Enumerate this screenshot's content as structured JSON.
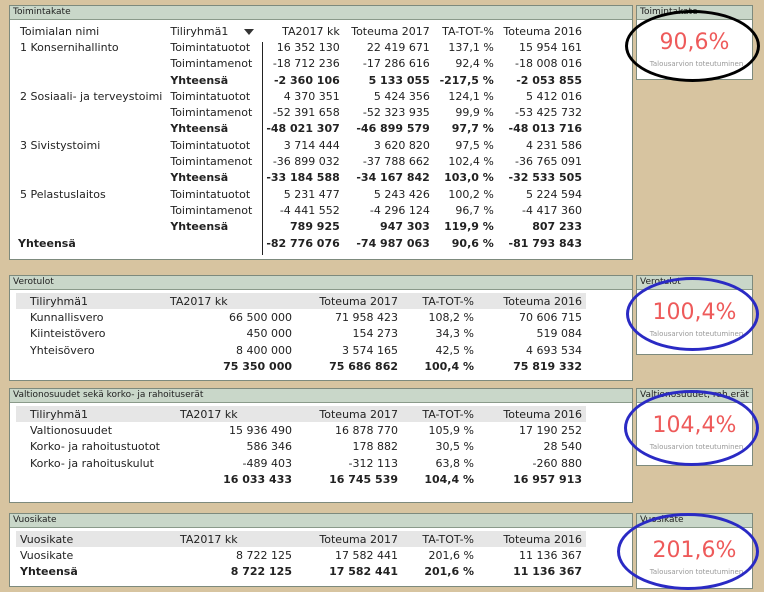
{
  "toimintakate": {
    "title": "Toimintakate",
    "headers": [
      "Toimialan nimi",
      "Tiliryhmä1",
      "TA2017 kk",
      "Toteuma 2017",
      "TA-TOT-%",
      "Toteuma 2016"
    ],
    "rows": [
      {
        "name": "1 Konsernihallinto",
        "group": "Toimintatuotot",
        "ta": "16 352 130",
        "tot": "22 419 671",
        "pct": "137,1 %",
        "tot16": "15 954 161"
      },
      {
        "name": "",
        "group": "Toimintamenot",
        "ta": "-18 712 236",
        "tot": "-17 286 616",
        "pct": "92,4 %",
        "tot16": "-18 008 016"
      },
      {
        "name": "",
        "group": "Yhteensä",
        "ta": "-2 360 106",
        "tot": "5 133 055",
        "pct": "-217,5 %",
        "tot16": "-2 053 855"
      },
      {
        "name": "2 Sosiaali- ja terveystoimi",
        "group": "Toimintatuotot",
        "ta": "4 370 351",
        "tot": "5 424 356",
        "pct": "124,1 %",
        "tot16": "5 412 016"
      },
      {
        "name": "",
        "group": "Toimintamenot",
        "ta": "-52 391 658",
        "tot": "-52 323 935",
        "pct": "99,9 %",
        "tot16": "-53 425 732"
      },
      {
        "name": "",
        "group": "Yhteensä",
        "ta": "-48 021 307",
        "tot": "-46 899 579",
        "pct": "97,7 %",
        "tot16": "-48 013 716"
      },
      {
        "name": "3 Sivistystoimi",
        "group": "Toimintatuotot",
        "ta": "3 714 444",
        "tot": "3 620 820",
        "pct": "97,5 %",
        "tot16": "4 231 586"
      },
      {
        "name": "",
        "group": "Toimintamenot",
        "ta": "-36 899 032",
        "tot": "-37 788 662",
        "pct": "102,4 %",
        "tot16": "-36 765 091"
      },
      {
        "name": "",
        "group": "Yhteensä",
        "ta": "-33 184 588",
        "tot": "-34 167 842",
        "pct": "103,0 %",
        "tot16": "-32 533 505"
      },
      {
        "name": "5 Pelastuslaitos",
        "group": "Toimintatuotot",
        "ta": "5 231 477",
        "tot": "5 243 426",
        "pct": "100,2 %",
        "tot16": "5 224 594"
      },
      {
        "name": "",
        "group": "Toimintamenot",
        "ta": "-4 441 552",
        "tot": "-4 296 124",
        "pct": "96,7 %",
        "tot16": "-4 417 360"
      },
      {
        "name": "",
        "group": "Yhteensä",
        "ta": "789 925",
        "tot": "947 303",
        "pct": "119,9 %",
        "tot16": "807 233"
      }
    ],
    "total": {
      "name": "Yhteensä",
      "ta": "-82 776 076",
      "tot": "-74 987 063",
      "pct": "90,6 %",
      "tot16": "-81 793 843"
    }
  },
  "verotulot": {
    "title": "Verotulot",
    "headers": [
      "Tiliryhmä1",
      "TA2017 kk",
      "Toteuma 2017",
      "TA-TOT-%",
      "Toteuma 2016"
    ],
    "rows": [
      {
        "name": "Kunnallisvero",
        "ta": "66 500 000",
        "tot": "71 958 423",
        "pct": "108,2 %",
        "tot16": "70 606 715"
      },
      {
        "name": "Kiinteistövero",
        "ta": "450 000",
        "tot": "154 273",
        "pct": "34,3 %",
        "tot16": "519 084"
      },
      {
        "name": "Yhteisövero",
        "ta": "8 400 000",
        "tot": "3 574 165",
        "pct": "42,5 %",
        "tot16": "4 693 534"
      }
    ],
    "total": {
      "ta": "75 350 000",
      "tot": "75 686 862",
      "pct": "100,4 %",
      "tot16": "75 819 332"
    }
  },
  "valtionosuudet": {
    "title": "Valtionosuudet sekä korko- ja rahoituserät",
    "headers": [
      "Tiliryhmä1",
      "TA2017 kk",
      "Toteuma 2017",
      "TA-TOT-%",
      "Toteuma 2016"
    ],
    "rows": [
      {
        "name": "Valtionosuudet",
        "ta": "15 936 490",
        "tot": "16 878 770",
        "pct": "105,9 %",
        "tot16": "17 190 252"
      },
      {
        "name": "Korko- ja rahoitustuotot",
        "ta": "586 346",
        "tot": "178 882",
        "pct": "30,5 %",
        "tot16": "28 540"
      },
      {
        "name": "Korko- ja rahoituskulut",
        "ta": "-489 403",
        "tot": "-312 113",
        "pct": "63,8 %",
        "tot16": "-260 880"
      }
    ],
    "total": {
      "ta": "16 033 433",
      "tot": "16 745 539",
      "pct": "104,4 %",
      "tot16": "16 957 913"
    }
  },
  "vuosikate": {
    "title": "Vuosikate",
    "headers": [
      "Vuosikate",
      "TA2017 kk",
      "Toteuma 2017",
      "TA-TOT-%",
      "Toteuma 2016"
    ],
    "rows": [
      {
        "name": "Vuosikate",
        "ta": "8 722 125",
        "tot": "17 582 441",
        "pct": "201,6 %",
        "tot16": "11 136 367"
      }
    ],
    "total": {
      "name": "Yhteensä",
      "ta": "8 722 125",
      "tot": "17 582 441",
      "pct": "201,6 %",
      "tot16": "11 136 367"
    }
  },
  "cards": [
    {
      "title": "Toimintakate",
      "value": "90,6%",
      "subtitle": "Talousarvion toteutuminen"
    },
    {
      "title": "Verotulot",
      "value": "100,4%",
      "subtitle": "Talousarvion toteutuminen"
    },
    {
      "title": "Valtionosuudet, rah.erät",
      "value": "104,4%",
      "subtitle": "Talousarvion toteutuminen"
    },
    {
      "title": "Vuosikate",
      "value": "201,6%",
      "subtitle": "Talousarvion toteutuminen"
    }
  ],
  "colors": {
    "kpi": "#ee5a5a",
    "ring_blue": "#2a2ac4",
    "ring_black": "#000000",
    "background": "#d7c4a0"
  },
  "icons": {
    "sort": "sort-down-icon"
  }
}
